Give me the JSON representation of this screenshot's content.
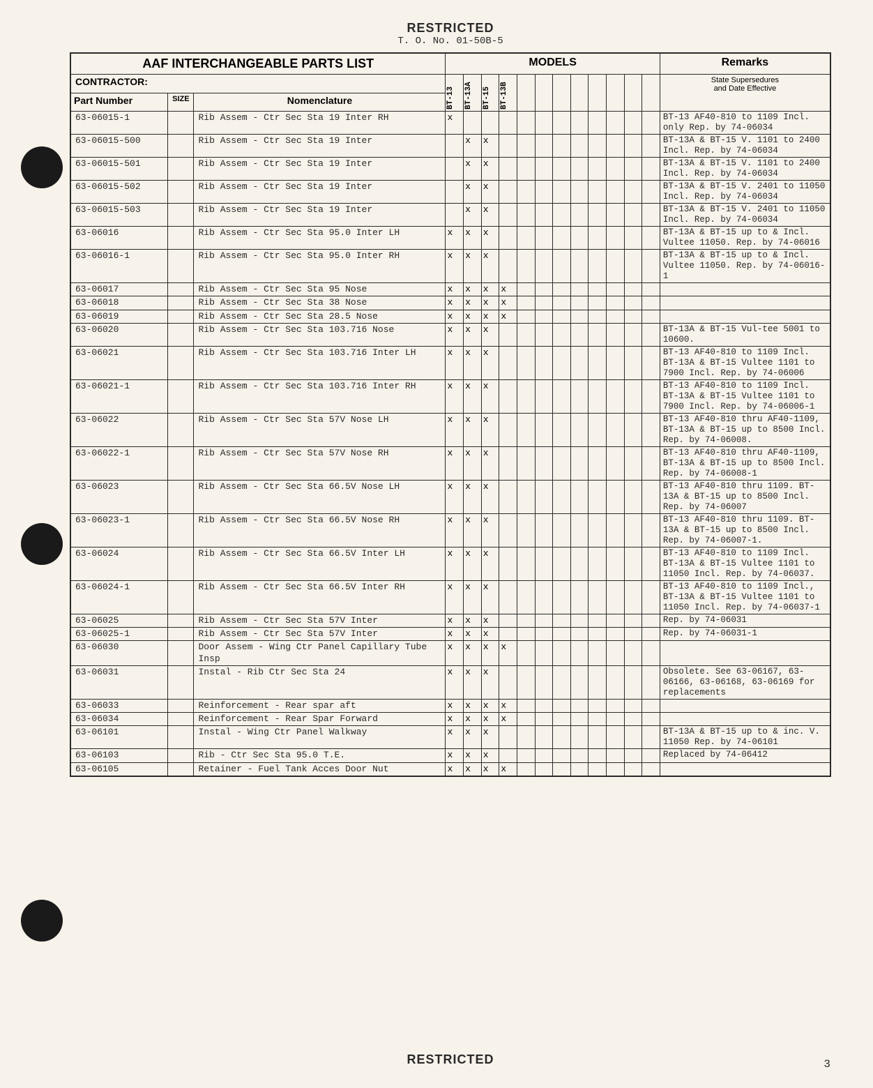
{
  "header": {
    "restricted": "RESTRICTED",
    "to_no": "T. O. No. 01-50B-5"
  },
  "table_headers": {
    "title": "AAF INTERCHANGEABLE PARTS LIST",
    "models": "MODELS",
    "remarks": "Remarks",
    "contractor": "CONTRACTOR:",
    "part_number": "Part Number",
    "size": "SIZE",
    "nomenclature": "Nomenclature",
    "supersedures": "State Supersedures",
    "date_effective": "and Date Effective"
  },
  "model_columns": [
    "BT-13",
    "BT-13A",
    "BT-15",
    "BT-13B",
    "",
    "",
    "",
    "",
    "",
    "",
    "",
    ""
  ],
  "rows": [
    {
      "pn": "63-06015-1",
      "size": "",
      "nom": "Rib Assem - Ctr Sec Sta 19 Inter RH",
      "m": [
        "x",
        "",
        "",
        "",
        "",
        "",
        "",
        "",
        "",
        "",
        "",
        ""
      ],
      "rem": "BT-13 AF40-810 to 1109 Incl. only Rep. by 74-06034"
    },
    {
      "pn": "63-06015-500",
      "size": "",
      "nom": "Rib Assem - Ctr Sec Sta 19 Inter",
      "m": [
        "",
        "x",
        "x",
        "",
        "",
        "",
        "",
        "",
        "",
        "",
        "",
        ""
      ],
      "rem": "BT-13A & BT-15 V. 1101 to 2400 Incl. Rep. by 74-06034"
    },
    {
      "pn": "63-06015-501",
      "size": "",
      "nom": "Rib Assem - Ctr Sec Sta 19 Inter",
      "m": [
        "",
        "x",
        "x",
        "",
        "",
        "",
        "",
        "",
        "",
        "",
        "",
        ""
      ],
      "rem": "BT-13A & BT-15 V. 1101 to 2400 Incl. Rep. by 74-06034"
    },
    {
      "pn": "63-06015-502",
      "size": "",
      "nom": "Rib Assem - Ctr Sec Sta 19 Inter",
      "m": [
        "",
        "x",
        "x",
        "",
        "",
        "",
        "",
        "",
        "",
        "",
        "",
        ""
      ],
      "rem": "BT-13A & BT-15 V. 2401 to 11050 Incl. Rep. by 74-06034"
    },
    {
      "pn": "63-06015-503",
      "size": "",
      "nom": "Rib Assem - Ctr Sec Sta 19 Inter",
      "m": [
        "",
        "x",
        "x",
        "",
        "",
        "",
        "",
        "",
        "",
        "",
        "",
        ""
      ],
      "rem": "BT-13A & BT-15 V. 2401 to 11050 Incl. Rep. by 74-06034"
    },
    {
      "pn": "63-06016",
      "size": "",
      "nom": "Rib Assem - Ctr Sec Sta 95.0 Inter LH",
      "m": [
        "x",
        "x",
        "x",
        "",
        "",
        "",
        "",
        "",
        "",
        "",
        "",
        ""
      ],
      "rem": "BT-13A & BT-15 up to & Incl. Vultee 11050. Rep. by 74-06016"
    },
    {
      "pn": "63-06016-1",
      "size": "",
      "nom": "Rib Assem - Ctr Sec Sta 95.0 Inter RH",
      "m": [
        "x",
        "x",
        "x",
        "",
        "",
        "",
        "",
        "",
        "",
        "",
        "",
        ""
      ],
      "rem": "BT-13A & BT-15 up to & Incl. Vultee 11050.  Rep. by 74-06016-1"
    },
    {
      "pn": "63-06017",
      "size": "",
      "nom": "Rib Assem - Ctr Sec Sta 95 Nose",
      "m": [
        "x",
        "x",
        "x",
        "x",
        "",
        "",
        "",
        "",
        "",
        "",
        "",
        ""
      ],
      "rem": ""
    },
    {
      "pn": "63-06018",
      "size": "",
      "nom": "Rib Assem - Ctr Sec Sta 38 Nose",
      "m": [
        "x",
        "x",
        "x",
        "x",
        "",
        "",
        "",
        "",
        "",
        "",
        "",
        ""
      ],
      "rem": ""
    },
    {
      "pn": "63-06019",
      "size": "",
      "nom": "Rib Assem - Ctr Sec Sta 28.5 Nose",
      "m": [
        "x",
        "x",
        "x",
        "x",
        "",
        "",
        "",
        "",
        "",
        "",
        "",
        ""
      ],
      "rem": ""
    },
    {
      "pn": "63-06020",
      "size": "",
      "nom": "Rib Assem - Ctr Sec Sta 103.716 Nose",
      "m": [
        "x",
        "x",
        "x",
        "",
        "",
        "",
        "",
        "",
        "",
        "",
        "",
        ""
      ],
      "rem": "BT-13A & BT-15 Vul-tee 5001 to 10600."
    },
    {
      "pn": "63-06021",
      "size": "",
      "nom": "Rib Assem - Ctr Sec Sta 103.716 Inter LH",
      "m": [
        "x",
        "x",
        "x",
        "",
        "",
        "",
        "",
        "",
        "",
        "",
        "",
        ""
      ],
      "rem": "BT-13 AF40-810 to 1109 Incl. BT-13A & BT-15 Vultee 1101 to 7900 Incl. Rep. by 74-06006"
    },
    {
      "pn": "63-06021-1",
      "size": "",
      "nom": "Rib Assem - Ctr Sec Sta 103.716 Inter RH",
      "m": [
        "x",
        "x",
        "x",
        "",
        "",
        "",
        "",
        "",
        "",
        "",
        "",
        ""
      ],
      "rem": "BT-13 AF40-810 to 1109 Incl. BT-13A & BT-15 Vultee 1101 to 7900 Incl. Rep. by 74-06006-1"
    },
    {
      "pn": "63-06022",
      "size": "",
      "nom": "Rib Assem - Ctr Sec Sta 57V Nose LH",
      "m": [
        "x",
        "x",
        "x",
        "",
        "",
        "",
        "",
        "",
        "",
        "",
        "",
        ""
      ],
      "rem": "BT-13 AF40-810 thru AF40-1109, BT-13A & BT-15 up to 8500 Incl. Rep. by 74-06008."
    },
    {
      "pn": "63-06022-1",
      "size": "",
      "nom": "Rib Assem - Ctr Sec Sta 57V Nose RH",
      "m": [
        "x",
        "x",
        "x",
        "",
        "",
        "",
        "",
        "",
        "",
        "",
        "",
        ""
      ],
      "rem": "BT-13 AF40-810 thru AF40-1109, BT-13A & BT-15 up to 8500 Incl. Rep. by 74-06008-1"
    },
    {
      "pn": "63-06023",
      "size": "",
      "nom": "Rib Assem - Ctr Sec Sta 66.5V Nose LH",
      "m": [
        "x",
        "x",
        "x",
        "",
        "",
        "",
        "",
        "",
        "",
        "",
        "",
        ""
      ],
      "rem": "BT-13 AF40-810 thru 1109. BT-13A & BT-15 up to 8500 Incl. Rep. by 74-06007"
    },
    {
      "pn": "63-06023-1",
      "size": "",
      "nom": "Rib Assem - Ctr Sec Sta 66.5V Nose RH",
      "m": [
        "x",
        "x",
        "x",
        "",
        "",
        "",
        "",
        "",
        "",
        "",
        "",
        ""
      ],
      "rem": "BT-13 AF40-810 thru 1109. BT-13A & BT-15 up to 8500 Incl. Rep. by 74-06007-1."
    },
    {
      "pn": "63-06024",
      "size": "",
      "nom": "Rib Assem - Ctr Sec Sta 66.5V Inter LH",
      "m": [
        "x",
        "x",
        "x",
        "",
        "",
        "",
        "",
        "",
        "",
        "",
        "",
        ""
      ],
      "rem": "BT-13 AF40-810 to 1109 Incl. BT-13A & BT-15 Vultee 1101 to 11050 Incl. Rep. by 74-06037."
    },
    {
      "pn": "63-06024-1",
      "size": "",
      "nom": "Rib Assem - Ctr Sec Sta 66.5V Inter RH",
      "m": [
        "x",
        "x",
        "x",
        "",
        "",
        "",
        "",
        "",
        "",
        "",
        "",
        ""
      ],
      "rem": "BT-13 AF40-810 to 1109 Incl., BT-13A & BT-15 Vultee 1101 to 11050 Incl. Rep. by 74-06037-1"
    },
    {
      "pn": "63-06025",
      "size": "",
      "nom": "Rib Assem - Ctr Sec Sta 57V Inter",
      "m": [
        "x",
        "x",
        "x",
        "",
        "",
        "",
        "",
        "",
        "",
        "",
        "",
        ""
      ],
      "rem": "Rep. by 74-06031"
    },
    {
      "pn": "63-06025-1",
      "size": "",
      "nom": "Rib Assem - Ctr Sec Sta 57V Inter",
      "m": [
        "x",
        "x",
        "x",
        "",
        "",
        "",
        "",
        "",
        "",
        "",
        "",
        ""
      ],
      "rem": "Rep. by 74-06031-1"
    },
    {
      "pn": "63-06030",
      "size": "",
      "nom": "Door Assem - Wing Ctr Panel Capillary Tube Insp",
      "m": [
        "x",
        "x",
        "x",
        "x",
        "",
        "",
        "",
        "",
        "",
        "",
        "",
        ""
      ],
      "rem": ""
    },
    {
      "pn": "63-06031",
      "size": "",
      "nom": "Instal - Rib Ctr Sec Sta 24",
      "m": [
        "x",
        "x",
        "x",
        "",
        "",
        "",
        "",
        "",
        "",
        "",
        "",
        ""
      ],
      "rem": "Obsolete.  See 63-06167, 63-06166, 63-06168, 63-06169 for replacements"
    },
    {
      "pn": "63-06033",
      "size": "",
      "nom": "Reinforcement - Rear spar aft",
      "m": [
        "x",
        "x",
        "x",
        "x",
        "",
        "",
        "",
        "",
        "",
        "",
        "",
        ""
      ],
      "rem": ""
    },
    {
      "pn": "63-06034",
      "size": "",
      "nom": "Reinforcement - Rear Spar Forward",
      "m": [
        "x",
        "x",
        "x",
        "x",
        "",
        "",
        "",
        "",
        "",
        "",
        "",
        ""
      ],
      "rem": ""
    },
    {
      "pn": "63-06101",
      "size": "",
      "nom": "Instal - Wing Ctr Panel Walkway",
      "m": [
        "x",
        "x",
        "x",
        "",
        "",
        "",
        "",
        "",
        "",
        "",
        "",
        ""
      ],
      "rem": "BT-13A & BT-15 up to & inc. V. 11050 Rep. by 74-06101"
    },
    {
      "pn": "63-06103",
      "size": "",
      "nom": "Rib - Ctr Sec Sta 95.0 T.E.",
      "m": [
        "x",
        "x",
        "x",
        "",
        "",
        "",
        "",
        "",
        "",
        "",
        "",
        ""
      ],
      "rem": "Replaced by 74-06412"
    },
    {
      "pn": "63-06105",
      "size": "",
      "nom": "Retainer - Fuel Tank Acces Door Nut",
      "m": [
        "x",
        "x",
        "x",
        "x",
        "",
        "",
        "",
        "",
        "",
        "",
        "",
        ""
      ],
      "rem": ""
    }
  ],
  "footer": {
    "restricted": "RESTRICTED",
    "page": "3"
  }
}
